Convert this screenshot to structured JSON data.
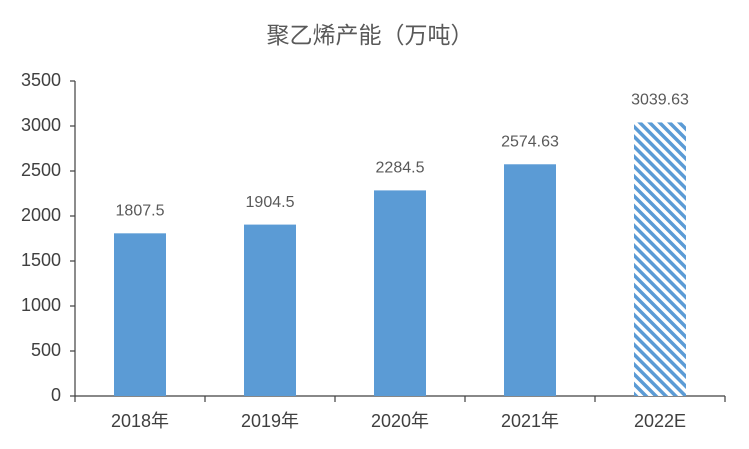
{
  "chart_data": {
    "type": "bar",
    "title": "聚乙烯产能（万吨）",
    "categories": [
      "2018年",
      "2019年",
      "2020年",
      "2021年",
      "2022E"
    ],
    "values": [
      1807.5,
      1904.5,
      2284.5,
      2574.63,
      3039.63
    ],
    "hatched": [
      false,
      false,
      false,
      false,
      true
    ],
    "color": "#5b9bd5",
    "ylim": [
      0,
      3500
    ],
    "yticks": [
      0,
      500,
      1000,
      1500,
      2000,
      2500,
      3000,
      3500
    ],
    "grid": false
  }
}
